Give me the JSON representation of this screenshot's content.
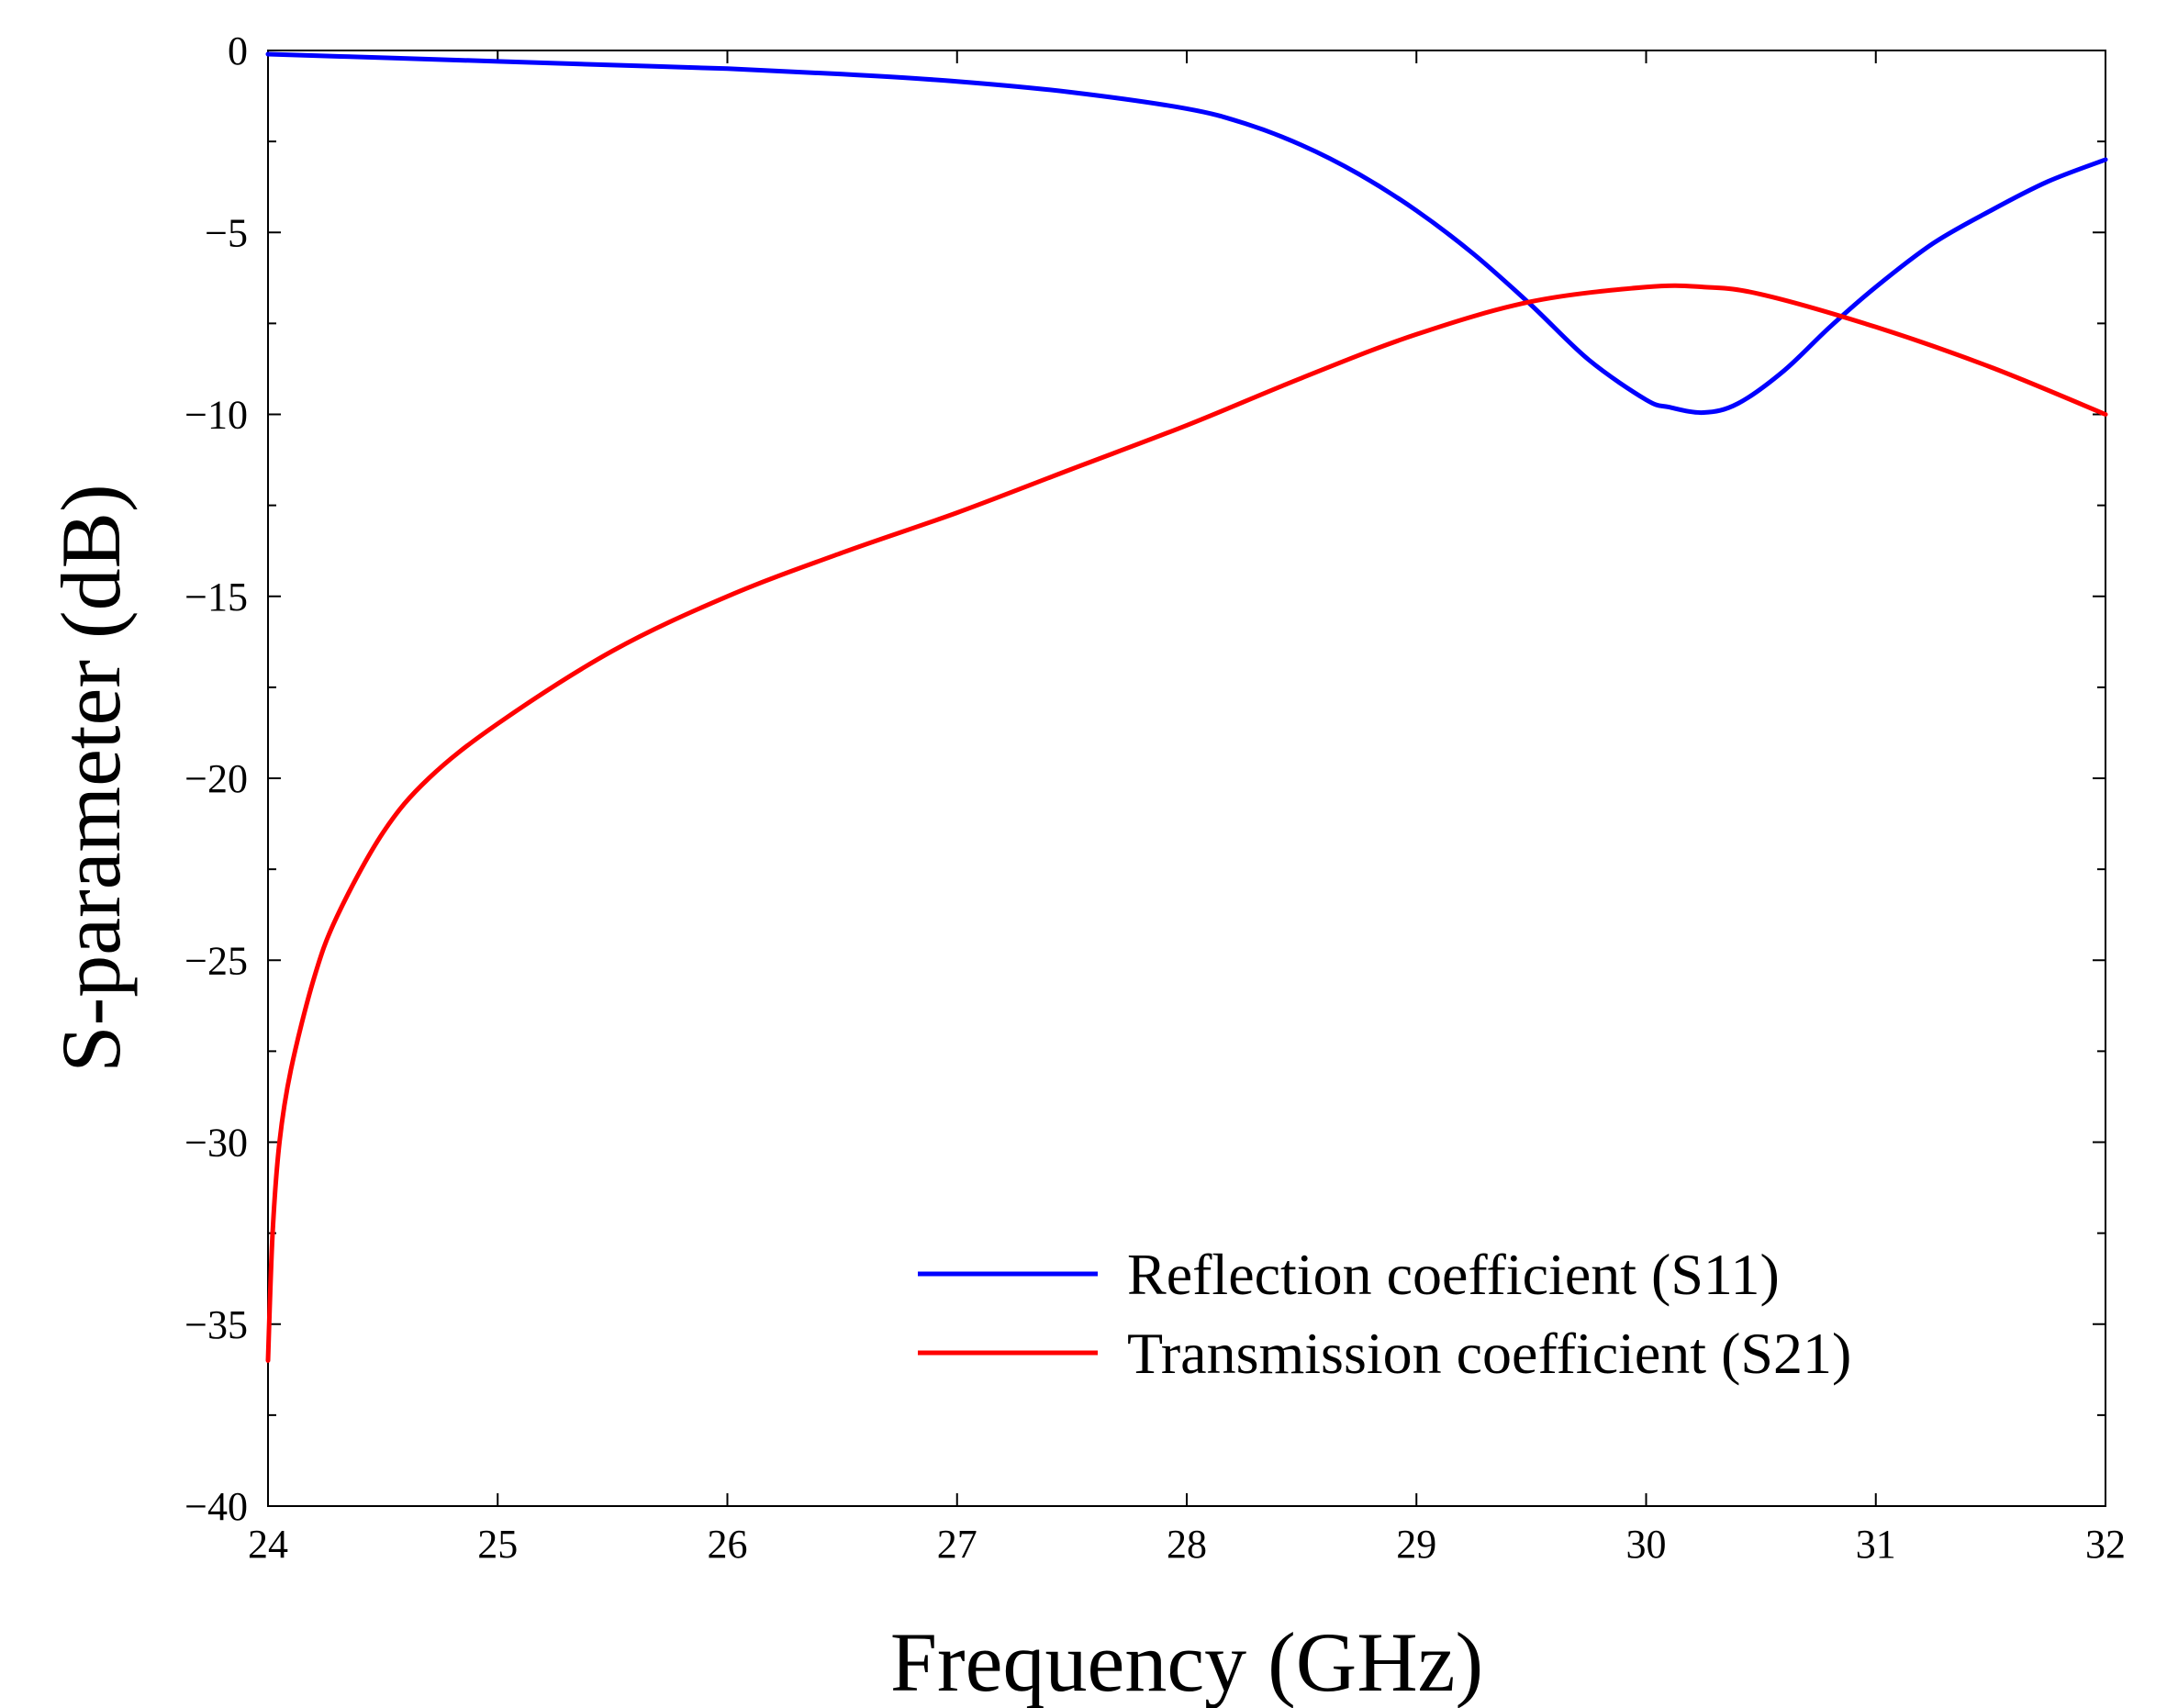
{
  "chart_data": {
    "type": "line",
    "title": "",
    "xlabel": "Frequency (GHz)",
    "ylabel": "S-parameter (dB)",
    "xlim": [
      24,
      32
    ],
    "ylim": [
      -40,
      0
    ],
    "xticks": [
      24,
      25,
      26,
      27,
      28,
      29,
      30,
      31,
      32
    ],
    "yticks": [
      0,
      -5,
      -10,
      -15,
      -20,
      -25,
      -30,
      -35,
      -40
    ],
    "xtick_labels": [
      "24",
      "25",
      "26",
      "27",
      "28",
      "29",
      "30",
      "31",
      "32"
    ],
    "ytick_labels": [
      "0",
      "−5",
      "−10",
      "−15",
      "−20",
      "−25",
      "−30",
      "−35",
      "−40"
    ],
    "grid": false,
    "legend_position": "lower-right",
    "series": [
      {
        "name": "Reflection coefficient (S11)",
        "color": "#0000ff",
        "x": [
          24.0,
          24.5,
          25.0,
          25.5,
          26.0,
          26.5,
          27.0,
          27.5,
          28.0,
          28.25,
          28.5,
          28.75,
          29.0,
          29.25,
          29.5,
          29.75,
          30.0,
          30.1,
          30.25,
          30.4,
          30.6,
          30.8,
          31.0,
          31.25,
          31.5,
          31.75,
          32.0
        ],
        "y": [
          -0.1,
          -0.2,
          -0.3,
          -0.4,
          -0.5,
          -0.65,
          -0.85,
          -1.15,
          -1.6,
          -2.0,
          -2.6,
          -3.4,
          -4.4,
          -5.6,
          -7.0,
          -8.5,
          -9.6,
          -9.8,
          -9.95,
          -9.7,
          -8.8,
          -7.6,
          -6.5,
          -5.3,
          -4.4,
          -3.6,
          -3.0
        ]
      },
      {
        "name": "Transmission coefficient (S21)",
        "color": "#ff0000",
        "x": [
          24.0,
          24.02,
          24.05,
          24.1,
          24.2,
          24.3,
          24.5,
          24.7,
          25.0,
          25.5,
          26.0,
          26.5,
          27.0,
          27.5,
          28.0,
          28.5,
          29.0,
          29.5,
          30.0,
          30.25,
          30.5,
          31.0,
          31.5,
          32.0
        ],
        "y": [
          -36.0,
          -32.5,
          -30.0,
          -28.0,
          -25.5,
          -23.8,
          -21.5,
          -20.0,
          -18.5,
          -16.5,
          -15.0,
          -13.8,
          -12.7,
          -11.5,
          -10.3,
          -9.0,
          -7.8,
          -6.9,
          -6.5,
          -6.5,
          -6.7,
          -7.6,
          -8.7,
          -10.0
        ]
      }
    ]
  }
}
